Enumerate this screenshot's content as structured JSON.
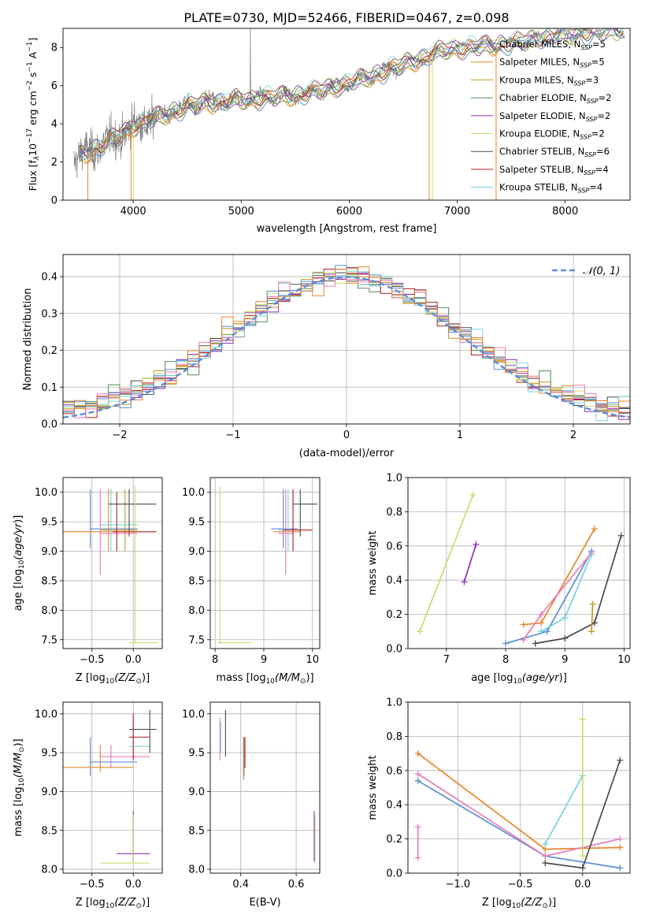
{
  "figure": {
    "title": "PLATE=0730, MJD=52466, FIBERID=0467, z=0.098"
  },
  "colors": {
    "data": "#808080",
    "normal": "#5B8DD6",
    "models": [
      "#5B8DD6",
      "#E6852A",
      "#C89423",
      "#4F8C4F",
      "#8E30B4",
      "#C7DE6C",
      "#4A4A4A",
      "#B3201F",
      "#78D0DE"
    ],
    "extra": [
      "#E97BB8",
      "#7E7E7E"
    ]
  },
  "chart_data": [
    {
      "id": "spectrum",
      "type": "line",
      "xlabel": "wavelength [Angstrom, rest frame]",
      "ylabel": "Flux [f",
      "ylabel_sub": "λ",
      "ylabel_rest": "10",
      "ylabel_exp1": "−17",
      "ylabel_mid": " erg cm",
      "ylabel_exp2": "−2",
      "ylabel_mid2": " s",
      "ylabel_exp3": "−1",
      "ylabel_end": " A",
      "ylabel_exp4": "−1",
      "ylabel_close": "]",
      "xlim": [
        3350,
        8600
      ],
      "ylim": [
        0,
        9
      ],
      "xticks": [
        "4000",
        "5000",
        "6000",
        "7000",
        "8000"
      ],
      "yticks": [
        "0",
        "2",
        "4",
        "6",
        "8"
      ],
      "continuum": [
        [
          3450,
          2.1
        ],
        [
          3600,
          2.6
        ],
        [
          3750,
          3.0
        ],
        [
          3900,
          3.5
        ],
        [
          4000,
          3.9
        ],
        [
          4150,
          4.2
        ],
        [
          4300,
          4.5
        ],
        [
          4500,
          4.9
        ],
        [
          4700,
          5.1
        ],
        [
          4900,
          5.2
        ],
        [
          5100,
          5.3
        ],
        [
          5300,
          5.4
        ],
        [
          5500,
          5.5
        ],
        [
          5700,
          5.7
        ],
        [
          5900,
          6.0
        ],
        [
          6100,
          6.3
        ],
        [
          6300,
          6.7
        ],
        [
          6500,
          7.1
        ],
        [
          6700,
          7.5
        ],
        [
          6900,
          7.9
        ],
        [
          7100,
          8.0
        ],
        [
          7300,
          8.1
        ],
        [
          7500,
          8.2
        ],
        [
          7700,
          8.4
        ],
        [
          7900,
          8.6
        ],
        [
          8100,
          8.7
        ],
        [
          8300,
          8.8
        ],
        [
          8500,
          8.9
        ]
      ],
      "legend": [
        {
          "name": "Chabrier MILES, N",
          "sub": "SSP",
          "tail": "=5"
        },
        {
          "name": "Salpeter MILES, N",
          "sub": "SSP",
          "tail": "=5"
        },
        {
          "name": "Kroupa MILES, N",
          "sub": "SSP",
          "tail": "=3"
        },
        {
          "name": "Chabrier ELODIE, N",
          "sub": "SSP",
          "tail": "=2"
        },
        {
          "name": "Salpeter ELODIE, N",
          "sub": "SSP",
          "tail": "=2"
        },
        {
          "name": "Kroupa ELODIE, N",
          "sub": "SSP",
          "tail": "=2"
        },
        {
          "name": "Chabrier STELIB, N",
          "sub": "SSP",
          "tail": "=6"
        },
        {
          "name": "Salpeter STELIB, N",
          "sub": "SSP",
          "tail": "=4"
        },
        {
          "name": "Kroupa STELIB, N",
          "sub": "SSP",
          "tail": "=4"
        }
      ]
    },
    {
      "id": "residuals",
      "type": "histogram",
      "xlabel": "(data-model)/error",
      "ylabel": "Normed distribution",
      "xlim": [
        -2.5,
        2.5
      ],
      "ylim": [
        0,
        0.46
      ],
      "xticks": [
        "−2",
        "−1",
        "0",
        "1",
        "2"
      ],
      "yticks": [
        "0.0",
        "0.1",
        "0.2",
        "0.3",
        "0.4"
      ],
      "grid": true,
      "legend_label": "𝒩(0, 1)",
      "legend_position": "top-right",
      "bin_width": 0.1
    },
    {
      "id": "age_vs_z",
      "type": "scatter",
      "xlabel": "Z [log",
      "xlabel_sub": "10",
      "xlabel_italic": "(Z/Z",
      "xlabel_sub2": "⊙",
      "xlabel_close": ")]",
      "ylabel": "age  [log",
      "ylabel_sub": "10",
      "ylabel_italic": "(age/yr",
      "ylabel_close": ")]",
      "xlim": [
        -0.85,
        0.35
      ],
      "ylim": [
        7.35,
        10.25
      ],
      "xticks": [
        "−0.5",
        "0.0"
      ],
      "yticks": [
        "7.5",
        "8.0",
        "8.5",
        "9.0",
        "9.5",
        "10.0"
      ],
      "grid": true,
      "points": [
        {
          "x": -0.52,
          "y": 9.38,
          "x0": -0.52,
          "x1": 0.05,
          "y0": 9.05,
          "y1": 10.05,
          "c": 0
        },
        {
          "x": -0.3,
          "y": 9.33,
          "x0": -0.85,
          "x1": 0.05,
          "y0": 9.0,
          "y1": 10.05,
          "c": 1
        },
        {
          "x": -0.1,
          "y": 9.36,
          "x0": -0.4,
          "x1": 0.05,
          "y0": 9.0,
          "y1": 10.05,
          "c": 2
        },
        {
          "x": -0.27,
          "y": 9.45,
          "x0": -0.4,
          "x1": 0.05,
          "y0": 9.0,
          "y1": 10.05,
          "c": 8
        },
        {
          "x": -0.4,
          "y": 9.3,
          "x0": -0.4,
          "x1": 0.05,
          "y0": 8.6,
          "y1": 10.05,
          "c": 9
        },
        {
          "x": -0.05,
          "y": 9.8,
          "x0": -0.3,
          "x1": 0.28,
          "y0": 9.25,
          "y1": 10.05,
          "c": 6
        },
        {
          "x": 0.02,
          "y": 7.45,
          "x0": -0.05,
          "x1": 0.3,
          "y0": 7.43,
          "y1": 10.1,
          "c": 5
        },
        {
          "x": -0.2,
          "y": 9.33,
          "x0": -0.25,
          "x1": 0.28,
          "y0": 9.0,
          "y1": 10.0,
          "c": 7
        }
      ]
    },
    {
      "id": "age_vs_mass",
      "type": "scatter",
      "xlabel": "mass [log",
      "xlabel_sub": "10",
      "xlabel_italic": "(M/M",
      "xlabel_sub2": "⊙",
      "xlabel_close": ")]",
      "xlim": [
        7.9,
        10.15
      ],
      "ylim": [
        7.35,
        10.25
      ],
      "xticks": [
        "8",
        "9",
        "10"
      ],
      "yticks": [
        "7.5",
        "8.0",
        "8.5",
        "9.0",
        "9.5",
        "10.0"
      ],
      "grid": true,
      "points": [
        {
          "x": 9.4,
          "y": 9.38,
          "x0": 9.15,
          "x1": 9.7,
          "y0": 9.05,
          "y1": 10.05,
          "c": 0
        },
        {
          "x": 9.6,
          "y": 9.33,
          "x0": 9.2,
          "x1": 9.75,
          "y0": 9.0,
          "y1": 10.05,
          "c": 1
        },
        {
          "x": 9.5,
          "y": 9.36,
          "x0": 9.3,
          "x1": 9.75,
          "y0": 9.0,
          "y1": 10.05,
          "c": 8
        },
        {
          "x": 9.45,
          "y": 9.3,
          "x0": 9.3,
          "x1": 9.6,
          "y0": 8.6,
          "y1": 10.05,
          "c": 9
        },
        {
          "x": 9.75,
          "y": 9.8,
          "x0": 9.6,
          "x1": 10.1,
          "y0": 9.25,
          "y1": 10.05,
          "c": 6
        },
        {
          "x": 8.1,
          "y": 7.45,
          "x0": 8.05,
          "x1": 8.75,
          "y0": 7.43,
          "y1": 10.1,
          "c": 5
        },
        {
          "x": 9.6,
          "y": 9.36,
          "x0": 9.4,
          "x1": 10.0,
          "y0": 9.0,
          "y1": 10.05,
          "c": 7
        }
      ]
    },
    {
      "id": "weight_vs_age",
      "type": "line",
      "xlabel": "age  [log",
      "xlabel_sub": "10",
      "xlabel_italic": "(age/yr",
      "xlabel_close": ")]",
      "ylabel": "mass weight",
      "xlim": [
        6.35,
        10.1
      ],
      "ylim": [
        0,
        1
      ],
      "xticks": [
        "7",
        "8",
        "9",
        "10"
      ],
      "yticks": [
        "0.0",
        "0.2",
        "0.4",
        "0.6",
        "0.8",
        "1.0"
      ],
      "grid": true,
      "series": [
        {
          "c": 5,
          "points": [
            [
              6.55,
              0.1
            ],
            [
              7.45,
              0.9
            ]
          ]
        },
        {
          "c": 4,
          "points": [
            [
              7.3,
              0.39
            ],
            [
              7.5,
              0.61
            ]
          ]
        },
        {
          "c": 1,
          "points": [
            [
              8.3,
              0.14
            ],
            [
              8.6,
              0.15
            ],
            [
              9.5,
              0.7
            ]
          ]
        },
        {
          "c": 0,
          "points": [
            [
              8.0,
              0.03
            ],
            [
              8.7,
              0.1
            ],
            [
              9.45,
              0.57
            ]
          ]
        },
        {
          "c": 9,
          "points": [
            [
              8.3,
              0.05
            ],
            [
              8.6,
              0.2
            ],
            [
              9.45,
              0.56
            ]
          ]
        },
        {
          "c": 8,
          "points": [
            [
              8.6,
              0.1
            ],
            [
              9.0,
              0.18
            ],
            [
              9.45,
              0.55
            ]
          ]
        },
        {
          "c": 6,
          "points": [
            [
              8.5,
              0.03
            ],
            [
              9.0,
              0.06
            ],
            [
              9.5,
              0.15
            ],
            [
              9.95,
              0.66
            ]
          ]
        },
        {
          "c": 2,
          "points": [
            [
              9.45,
              0.1
            ],
            [
              9.47,
              0.26
            ]
          ]
        }
      ]
    },
    {
      "id": "mass_vs_z",
      "type": "scatter",
      "xlabel": "Z [log",
      "xlabel_sub": "10",
      "xlabel_italic": "(Z/Z",
      "xlabel_sub2": "⊙",
      "xlabel_close": ")]",
      "ylabel": "mass [log",
      "ylabel_sub": "10",
      "ylabel_italic": "(M/M",
      "ylabel_sub2": "⊙",
      "ylabel_close": ")]",
      "xlim": [
        -0.85,
        0.35
      ],
      "ylim": [
        7.95,
        10.15
      ],
      "xticks": [
        "−0.5",
        "0.0"
      ],
      "yticks": [
        "8.0",
        "8.5",
        "9.0",
        "9.5",
        "10.0"
      ],
      "grid": true,
      "points": [
        {
          "x": -0.52,
          "y": 9.38,
          "x0": -0.52,
          "x1": 0.05,
          "y0": 9.2,
          "y1": 9.7,
          "c": 0
        },
        {
          "x": -0.4,
          "y": 9.31,
          "x0": -0.85,
          "x1": 0.0,
          "y0": 9.25,
          "y1": 9.6,
          "c": 1
        },
        {
          "x": -0.27,
          "y": 9.45,
          "x0": -0.4,
          "x1": 0.2,
          "y0": 9.3,
          "y1": 9.6,
          "c": 9
        },
        {
          "x": 0.0,
          "y": 9.58,
          "x0": -0.05,
          "x1": 0.2,
          "y0": 9.5,
          "y1": 9.9,
          "c": 8
        },
        {
          "x": 0.0,
          "y": 9.7,
          "x0": -0.05,
          "x1": 0.2,
          "y0": 9.4,
          "y1": 10.0,
          "c": 7
        },
        {
          "x": 0.2,
          "y": 9.8,
          "x0": -0.05,
          "x1": 0.28,
          "y0": 9.5,
          "y1": 10.05,
          "c": 6
        },
        {
          "x": 0.0,
          "y": 8.2,
          "x0": -0.2,
          "x1": 0.2,
          "y0": 8.1,
          "y1": 8.75,
          "c": 4
        },
        {
          "x": 0.0,
          "y": 8.08,
          "x0": -0.4,
          "x1": 0.2,
          "y0": 8.07,
          "y1": 8.7,
          "c": 5
        }
      ]
    },
    {
      "id": "mass_vs_ebv",
      "type": "scatter",
      "xlabel": "E(B-V)",
      "xlim": [
        0.29,
        0.685
      ],
      "ylim": [
        7.95,
        10.15
      ],
      "xticks": [
        "0.4",
        "0.6"
      ],
      "yticks": [
        "8.0",
        "8.5",
        "9.0",
        "9.5",
        "10.0"
      ],
      "grid": true,
      "points": [
        {
          "x": 0.325,
          "y": 9.6,
          "y0": 9.4,
          "y1": 9.95,
          "c": 9
        },
        {
          "x": 0.328,
          "y": 9.7,
          "y0": 9.5,
          "y1": 9.9,
          "c": 8
        },
        {
          "x": 0.345,
          "y": 9.8,
          "y0": 9.45,
          "y1": 10.05,
          "c": 6
        },
        {
          "x": 0.41,
          "y": 9.4,
          "y0": 9.15,
          "y1": 9.7,
          "c": 0
        },
        {
          "x": 0.412,
          "y": 9.35,
          "y0": 9.2,
          "y1": 9.7,
          "c": 1
        },
        {
          "x": 0.415,
          "y": 9.45,
          "y0": 9.3,
          "y1": 9.7,
          "c": 7
        },
        {
          "x": 0.665,
          "y": 8.3,
          "y0": 8.1,
          "y1": 8.75,
          "c": 4
        },
        {
          "x": 0.668,
          "y": 8.2,
          "y0": 8.07,
          "y1": 8.7,
          "c": 5
        }
      ]
    },
    {
      "id": "weight_vs_z",
      "type": "line",
      "xlabel": "Z [log",
      "xlabel_sub": "10",
      "xlabel_italic": "(Z/Z",
      "xlabel_sub2": "⊙",
      "xlabel_close": ")]",
      "ylabel": "mass weight",
      "xlim": [
        -1.4,
        0.38
      ],
      "ylim": [
        0,
        1
      ],
      "xticks": [
        "−1.0",
        "−0.5",
        "0.0"
      ],
      "yticks": [
        "0.0",
        "0.2",
        "0.4",
        "0.6",
        "0.8",
        "1.0"
      ],
      "grid": true,
      "series": [
        {
          "c": 1,
          "points": [
            [
              -1.32,
              0.7
            ],
            [
              -0.3,
              0.14
            ],
            [
              0.3,
              0.15
            ]
          ]
        },
        {
          "c": 0,
          "points": [
            [
              -1.32,
              0.54
            ],
            [
              -0.3,
              0.1
            ],
            [
              0.3,
              0.03
            ]
          ]
        },
        {
          "c": 9,
          "points": [
            [
              -1.32,
              0.58
            ],
            [
              -0.3,
              0.1
            ],
            [
              0.3,
              0.2
            ]
          ]
        },
        {
          "c": 8,
          "points": [
            [
              -0.3,
              0.17
            ],
            [
              0.0,
              0.57
            ]
          ]
        },
        {
          "c": 5,
          "points": [
            [
              0.0,
              0.9
            ],
            [
              0.0,
              0.1
            ]
          ]
        },
        {
          "c": 6,
          "points": [
            [
              -0.3,
              0.06
            ],
            [
              0.0,
              0.03
            ],
            [
              0.3,
              0.66
            ]
          ]
        },
        {
          "c": 9,
          "points": [
            [
              -1.32,
              0.09
            ],
            [
              -1.32,
              0.27
            ]
          ]
        }
      ]
    }
  ]
}
